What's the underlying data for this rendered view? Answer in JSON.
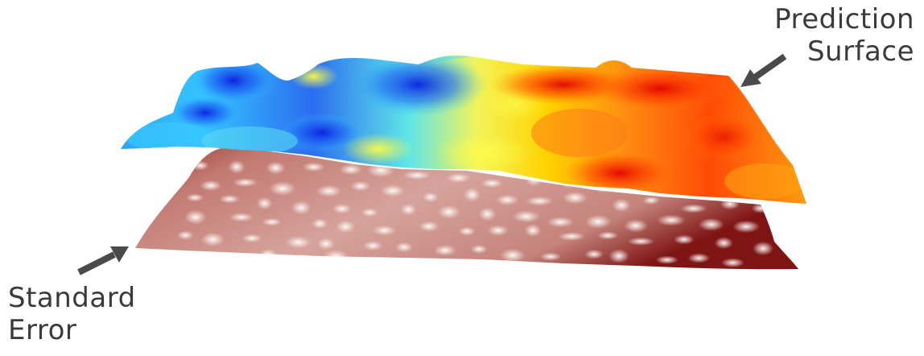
{
  "labels": {
    "prediction": [
      "Prediction",
      "Surface"
    ],
    "standard_error": [
      "Standard",
      "Error"
    ]
  },
  "colors": {
    "prediction_ramp": [
      "#1a2bd6",
      "#20a8ff",
      "#3ef0f0",
      "#f4f45a",
      "#ffd400",
      "#ff8a10",
      "#ff3300",
      "#e60000"
    ],
    "error_ramp": [
      "#8e2e2a",
      "#b86a62",
      "#d49a92",
      "#f3e2df"
    ],
    "arrow": "#4a4a4a",
    "text": "#3a3a3a"
  }
}
